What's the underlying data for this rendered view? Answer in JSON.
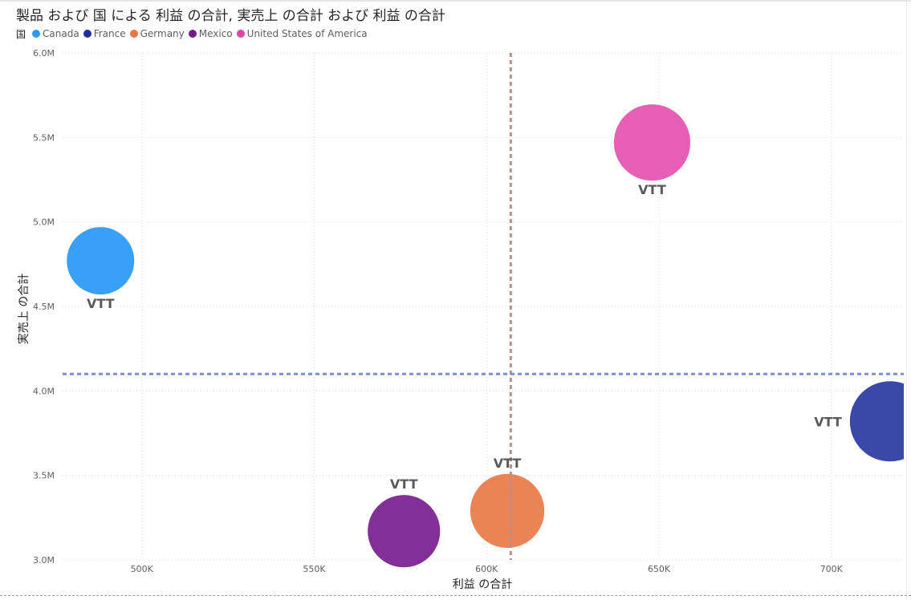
{
  "chart_data": {
    "type": "scatter",
    "title": "製品 および 国 による 利益 の合計, 実売上 の合計 および 利益 の合計",
    "legend": {
      "title": "国",
      "placement": "top-left",
      "items": [
        {
          "name": "Canada",
          "color": "#2E9BF7"
        },
        {
          "name": "France",
          "color": "#1F2F9E"
        },
        {
          "name": "Germany",
          "color": "#EA7545"
        },
        {
          "name": "Mexico",
          "color": "#741A8C"
        },
        {
          "name": "United States of America",
          "color": "#E044A7"
        }
      ]
    },
    "xlabel": "利益 の合計",
    "ylabel": "実売上 の合計",
    "xlim": [
      477000,
      721000
    ],
    "ylim": [
      3000000,
      6000000
    ],
    "xticks": [
      {
        "value": 500000,
        "label": "500K"
      },
      {
        "value": 550000,
        "label": "550K"
      },
      {
        "value": 600000,
        "label": "600K"
      },
      {
        "value": 650000,
        "label": "650K"
      },
      {
        "value": 700000,
        "label": "700K"
      }
    ],
    "yticks": [
      {
        "value": 3000000,
        "label": "3.0M"
      },
      {
        "value": 3500000,
        "label": "3.5M"
      },
      {
        "value": 4000000,
        "label": "4.0M"
      },
      {
        "value": 4500000,
        "label": "4.5M"
      },
      {
        "value": 5000000,
        "label": "5.0M"
      },
      {
        "value": 5500000,
        "label": "5.5M"
      },
      {
        "value": 6000000,
        "label": "6.0M"
      }
    ],
    "grid": true,
    "points": [
      {
        "series": "Canada",
        "label": "VTT",
        "label_side": "below",
        "x": 488000,
        "y": 4770000,
        "size": 488000,
        "color": "#2E9BF7",
        "opacity": 0.95
      },
      {
        "series": "France",
        "label": "VTT",
        "label_side": "left",
        "x": 717000,
        "y": 3820000,
        "size": 717000,
        "color": "#1F2F9E",
        "opacity": 0.88
      },
      {
        "series": "Germany",
        "label": "VTT",
        "label_side": "above",
        "x": 606000,
        "y": 3290000,
        "size": 606000,
        "color": "#EA7545",
        "opacity": 0.9
      },
      {
        "series": "Mexico",
        "label": "VTT",
        "label_side": "above",
        "x": 576000,
        "y": 3170000,
        "size": 576000,
        "color": "#741A8C",
        "opacity": 0.9
      },
      {
        "series": "United States of America",
        "label": "VTT",
        "label_side": "below",
        "x": 648000,
        "y": 5470000,
        "size": 648000,
        "color": "#E044A7",
        "opacity": 0.85
      }
    ],
    "reference_lines": [
      {
        "axis": "x",
        "value": 607000,
        "color": "#B09090",
        "style": "dashed"
      },
      {
        "axis": "y",
        "value": 4100000,
        "color": "#7C8ED0",
        "style": "dashed"
      }
    ]
  }
}
